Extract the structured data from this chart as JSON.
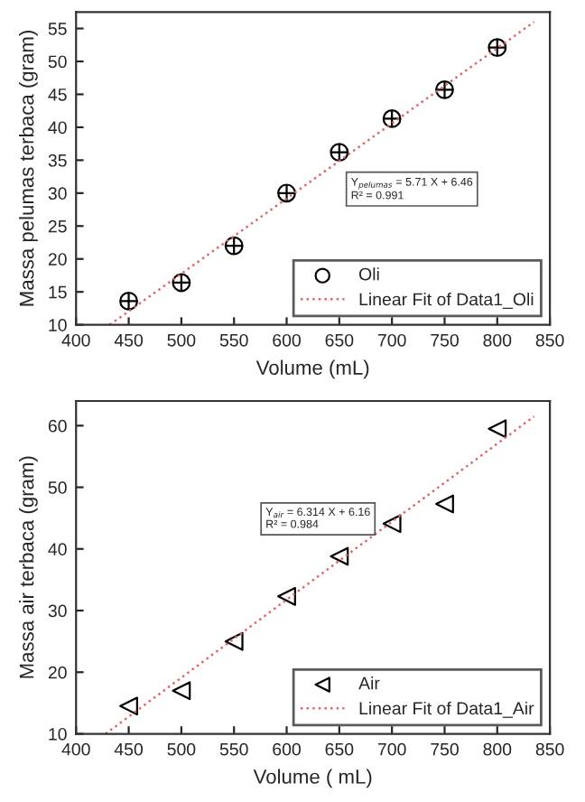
{
  "chart_data": [
    {
      "type": "scatter",
      "xlabel": "Volume (mL)",
      "ylabel": "Massa pelumas terbaca (gram)",
      "xlim": [
        400,
        850
      ],
      "xticks": [
        400,
        450,
        500,
        550,
        600,
        650,
        700,
        750,
        800,
        850
      ],
      "ylim": [
        10,
        57.5
      ],
      "yticks": [
        10,
        15,
        20,
        25,
        30,
        35,
        40,
        45,
        50,
        55
      ],
      "legend": "bottom right",
      "annotations": [
        "Y$_{pelumas}$ = 5.71 X + 6.46\nR² = 0.991"
      ],
      "series": [
        {
          "name": "Oli",
          "marker": "circle",
          "color": "#000000",
          "x": [
            450,
            500,
            550,
            600,
            650,
            700,
            750,
            800
          ],
          "values": [
            13.6,
            16.4,
            22,
            30,
            36.2,
            41.3,
            45.7,
            52.1
          ]
        },
        {
          "name": "Linear Fit of Data1_Oli",
          "type": "line",
          "line_style": "dotted",
          "color": "#e06666",
          "x": [
            432,
            835
          ],
          "values": [
            10,
            56
          ]
        }
      ]
    },
    {
      "type": "scatter",
      "xlabel": "Volume ( mL)",
      "ylabel": "Massa air terbaca (gram)",
      "xlim": [
        400,
        850
      ],
      "xticks": [
        400,
        450,
        500,
        550,
        600,
        650,
        700,
        750,
        800,
        850
      ],
      "ylim": [
        10,
        64
      ],
      "yticks": [
        10,
        20,
        30,
        40,
        50,
        60
      ],
      "legend": "bottom right",
      "annotations": [
        "Y$_{air}$ = 6.314 X + 6.16\nR² = 0.984"
      ],
      "series": [
        {
          "name": "Air",
          "marker": "triangle",
          "color": "#000000",
          "x": [
            450,
            500,
            550,
            600,
            650,
            700,
            750,
            800
          ],
          "values": [
            14.5,
            17,
            25,
            32.3,
            38.8,
            44.1,
            47.3,
            59.5
          ]
        },
        {
          "name": "Linear Fit of Data1_Air",
          "type": "line",
          "line_style": "dotted",
          "color": "#e06666",
          "x": [
            428,
            835
          ],
          "values": [
            10,
            61.5
          ]
        }
      ]
    }
  ]
}
